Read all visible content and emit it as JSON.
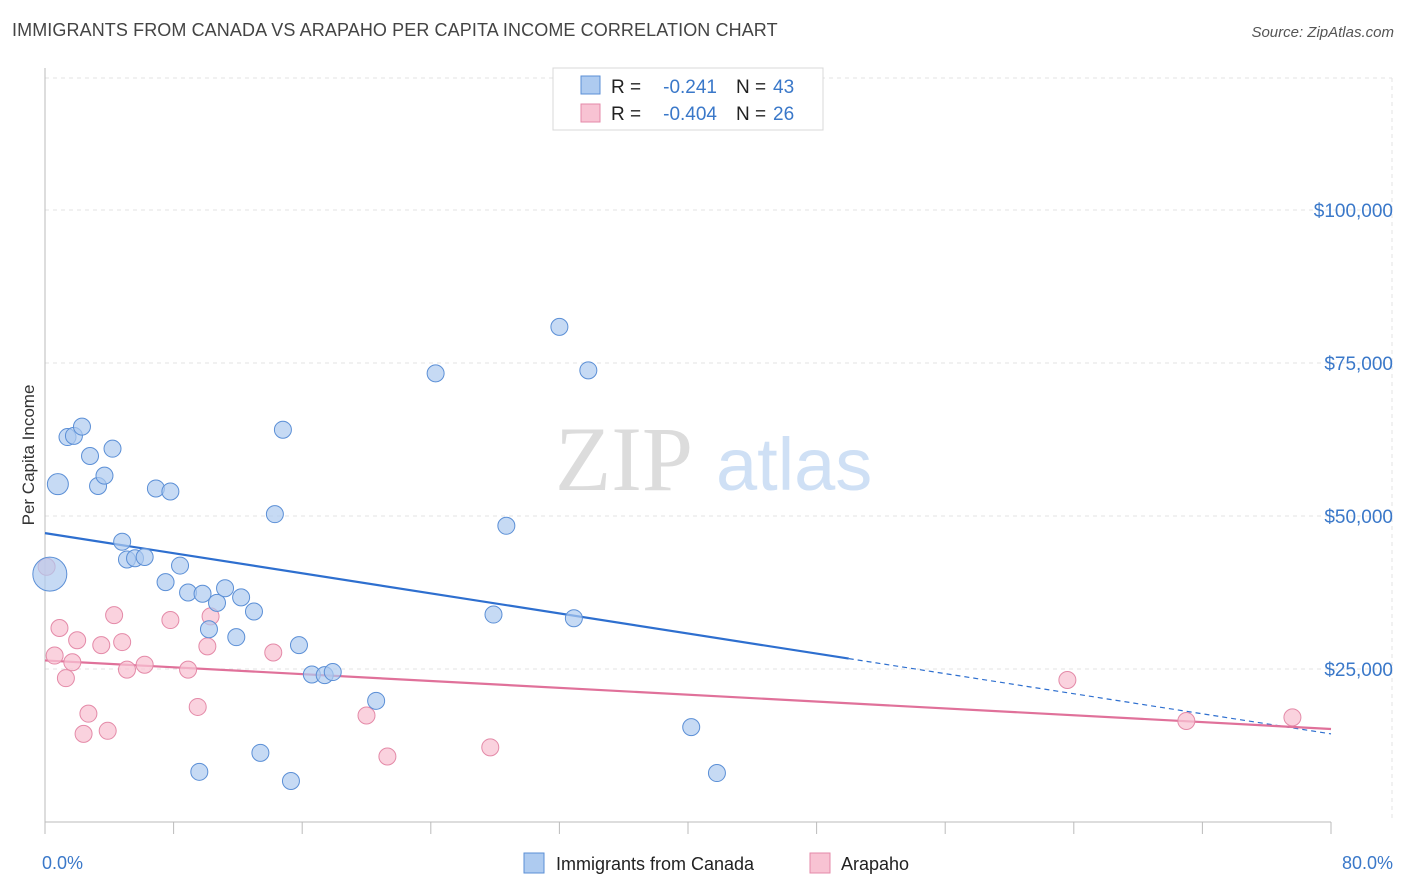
{
  "header": {
    "title": "IMMIGRANTS FROM CANADA VS ARAPAHO PER CAPITA INCOME CORRELATION CHART",
    "source": "Source: ZipAtlas.com"
  },
  "watermark": {
    "zip": "ZIP",
    "atlas": "atlas"
  },
  "legend": {
    "r_label": "R =",
    "n_label": "N =",
    "rows": [
      {
        "r": "-0.241",
        "n": "43"
      },
      {
        "r": "-0.404",
        "n": "26"
      }
    ]
  },
  "bottom_legend": [
    "Immigrants from Canada",
    "Arapaho"
  ],
  "colors": {
    "canada_fill": "#aecbf0",
    "canada_stroke": "#5b8fd6",
    "canada_line": "#2e6fcf",
    "arapaho_fill": "#f8c3d3",
    "arapaho_stroke": "#e48aa8",
    "arapaho_line": "#e0719a"
  },
  "chart_data": {
    "type": "scatter",
    "title": "IMMIGRANTS FROM CANADA VS ARAPAHO PER CAPITA INCOME CORRELATION CHART",
    "xlabel": "",
    "ylabel": "Per Capita Income",
    "xlim": [
      0,
      80
    ],
    "ylim": [
      0,
      105000
    ],
    "x_tick_labels": [
      "0.0%",
      "80.0%"
    ],
    "y_ticks": [
      {
        "value": 25000,
        "label": "$25,000"
      },
      {
        "value": 50000,
        "label": "$50,000"
      },
      {
        "value": 75000,
        "label": "$75,000"
      },
      {
        "value": 100000,
        "label": "$100,000"
      }
    ],
    "grid": true,
    "legend_position": "top-center",
    "series": [
      {
        "name": "Immigrants from Canada",
        "r": -0.241,
        "n": 43,
        "points": [
          [
            0.3,
            40500
          ],
          [
            0.8,
            55200
          ],
          [
            1.4,
            62900
          ],
          [
            1.8,
            63100
          ],
          [
            2.3,
            64600
          ],
          [
            2.8,
            59800
          ],
          [
            3.3,
            54900
          ],
          [
            3.7,
            56600
          ],
          [
            4.2,
            61000
          ],
          [
            4.8,
            45800
          ],
          [
            5.1,
            42900
          ],
          [
            5.6,
            43100
          ],
          [
            6.2,
            43300
          ],
          [
            6.9,
            54500
          ],
          [
            7.5,
            39200
          ],
          [
            7.8,
            54000
          ],
          [
            8.4,
            41900
          ],
          [
            8.9,
            37500
          ],
          [
            9.6,
            8200
          ],
          [
            9.8,
            37300
          ],
          [
            10.2,
            31500
          ],
          [
            10.7,
            35800
          ],
          [
            11.2,
            38200
          ],
          [
            11.9,
            30200
          ],
          [
            12.2,
            36700
          ],
          [
            13.0,
            34400
          ],
          [
            13.4,
            11300
          ],
          [
            14.3,
            50300
          ],
          [
            14.8,
            64100
          ],
          [
            15.3,
            6700
          ],
          [
            15.8,
            28900
          ],
          [
            16.6,
            24100
          ],
          [
            17.4,
            24000
          ],
          [
            17.9,
            24500
          ],
          [
            20.6,
            19800
          ],
          [
            24.3,
            73300
          ],
          [
            27.9,
            33900
          ],
          [
            28.7,
            48400
          ],
          [
            32.0,
            80900
          ],
          [
            32.9,
            33300
          ],
          [
            33.8,
            73800
          ],
          [
            40.2,
            15500
          ],
          [
            41.8,
            8000
          ]
        ],
        "trend": {
          "x": [
            0,
            50
          ],
          "y": [
            47200,
            26700
          ],
          "dashed_to": [
            80,
            14400
          ]
        }
      },
      {
        "name": "Arapaho",
        "r": -0.404,
        "n": 26,
        "points": [
          [
            0.1,
            41700
          ],
          [
            0.6,
            27200
          ],
          [
            0.9,
            31700
          ],
          [
            1.3,
            23500
          ],
          [
            1.7,
            26100
          ],
          [
            2.0,
            29700
          ],
          [
            2.4,
            14400
          ],
          [
            2.7,
            17700
          ],
          [
            3.5,
            28900
          ],
          [
            3.9,
            14900
          ],
          [
            4.3,
            33800
          ],
          [
            4.8,
            29400
          ],
          [
            5.1,
            24900
          ],
          [
            6.2,
            25700
          ],
          [
            7.8,
            33000
          ],
          [
            8.9,
            24900
          ],
          [
            9.5,
            18800
          ],
          [
            10.1,
            28700
          ],
          [
            10.3,
            33600
          ],
          [
            14.2,
            27700
          ],
          [
            20.0,
            17400
          ],
          [
            21.3,
            10700
          ],
          [
            27.7,
            12200
          ],
          [
            63.6,
            23200
          ],
          [
            71.0,
            16500
          ],
          [
            77.6,
            17100
          ]
        ],
        "trend": {
          "x": [
            0,
            80
          ],
          "y": [
            26400,
            15200
          ]
        }
      }
    ]
  }
}
